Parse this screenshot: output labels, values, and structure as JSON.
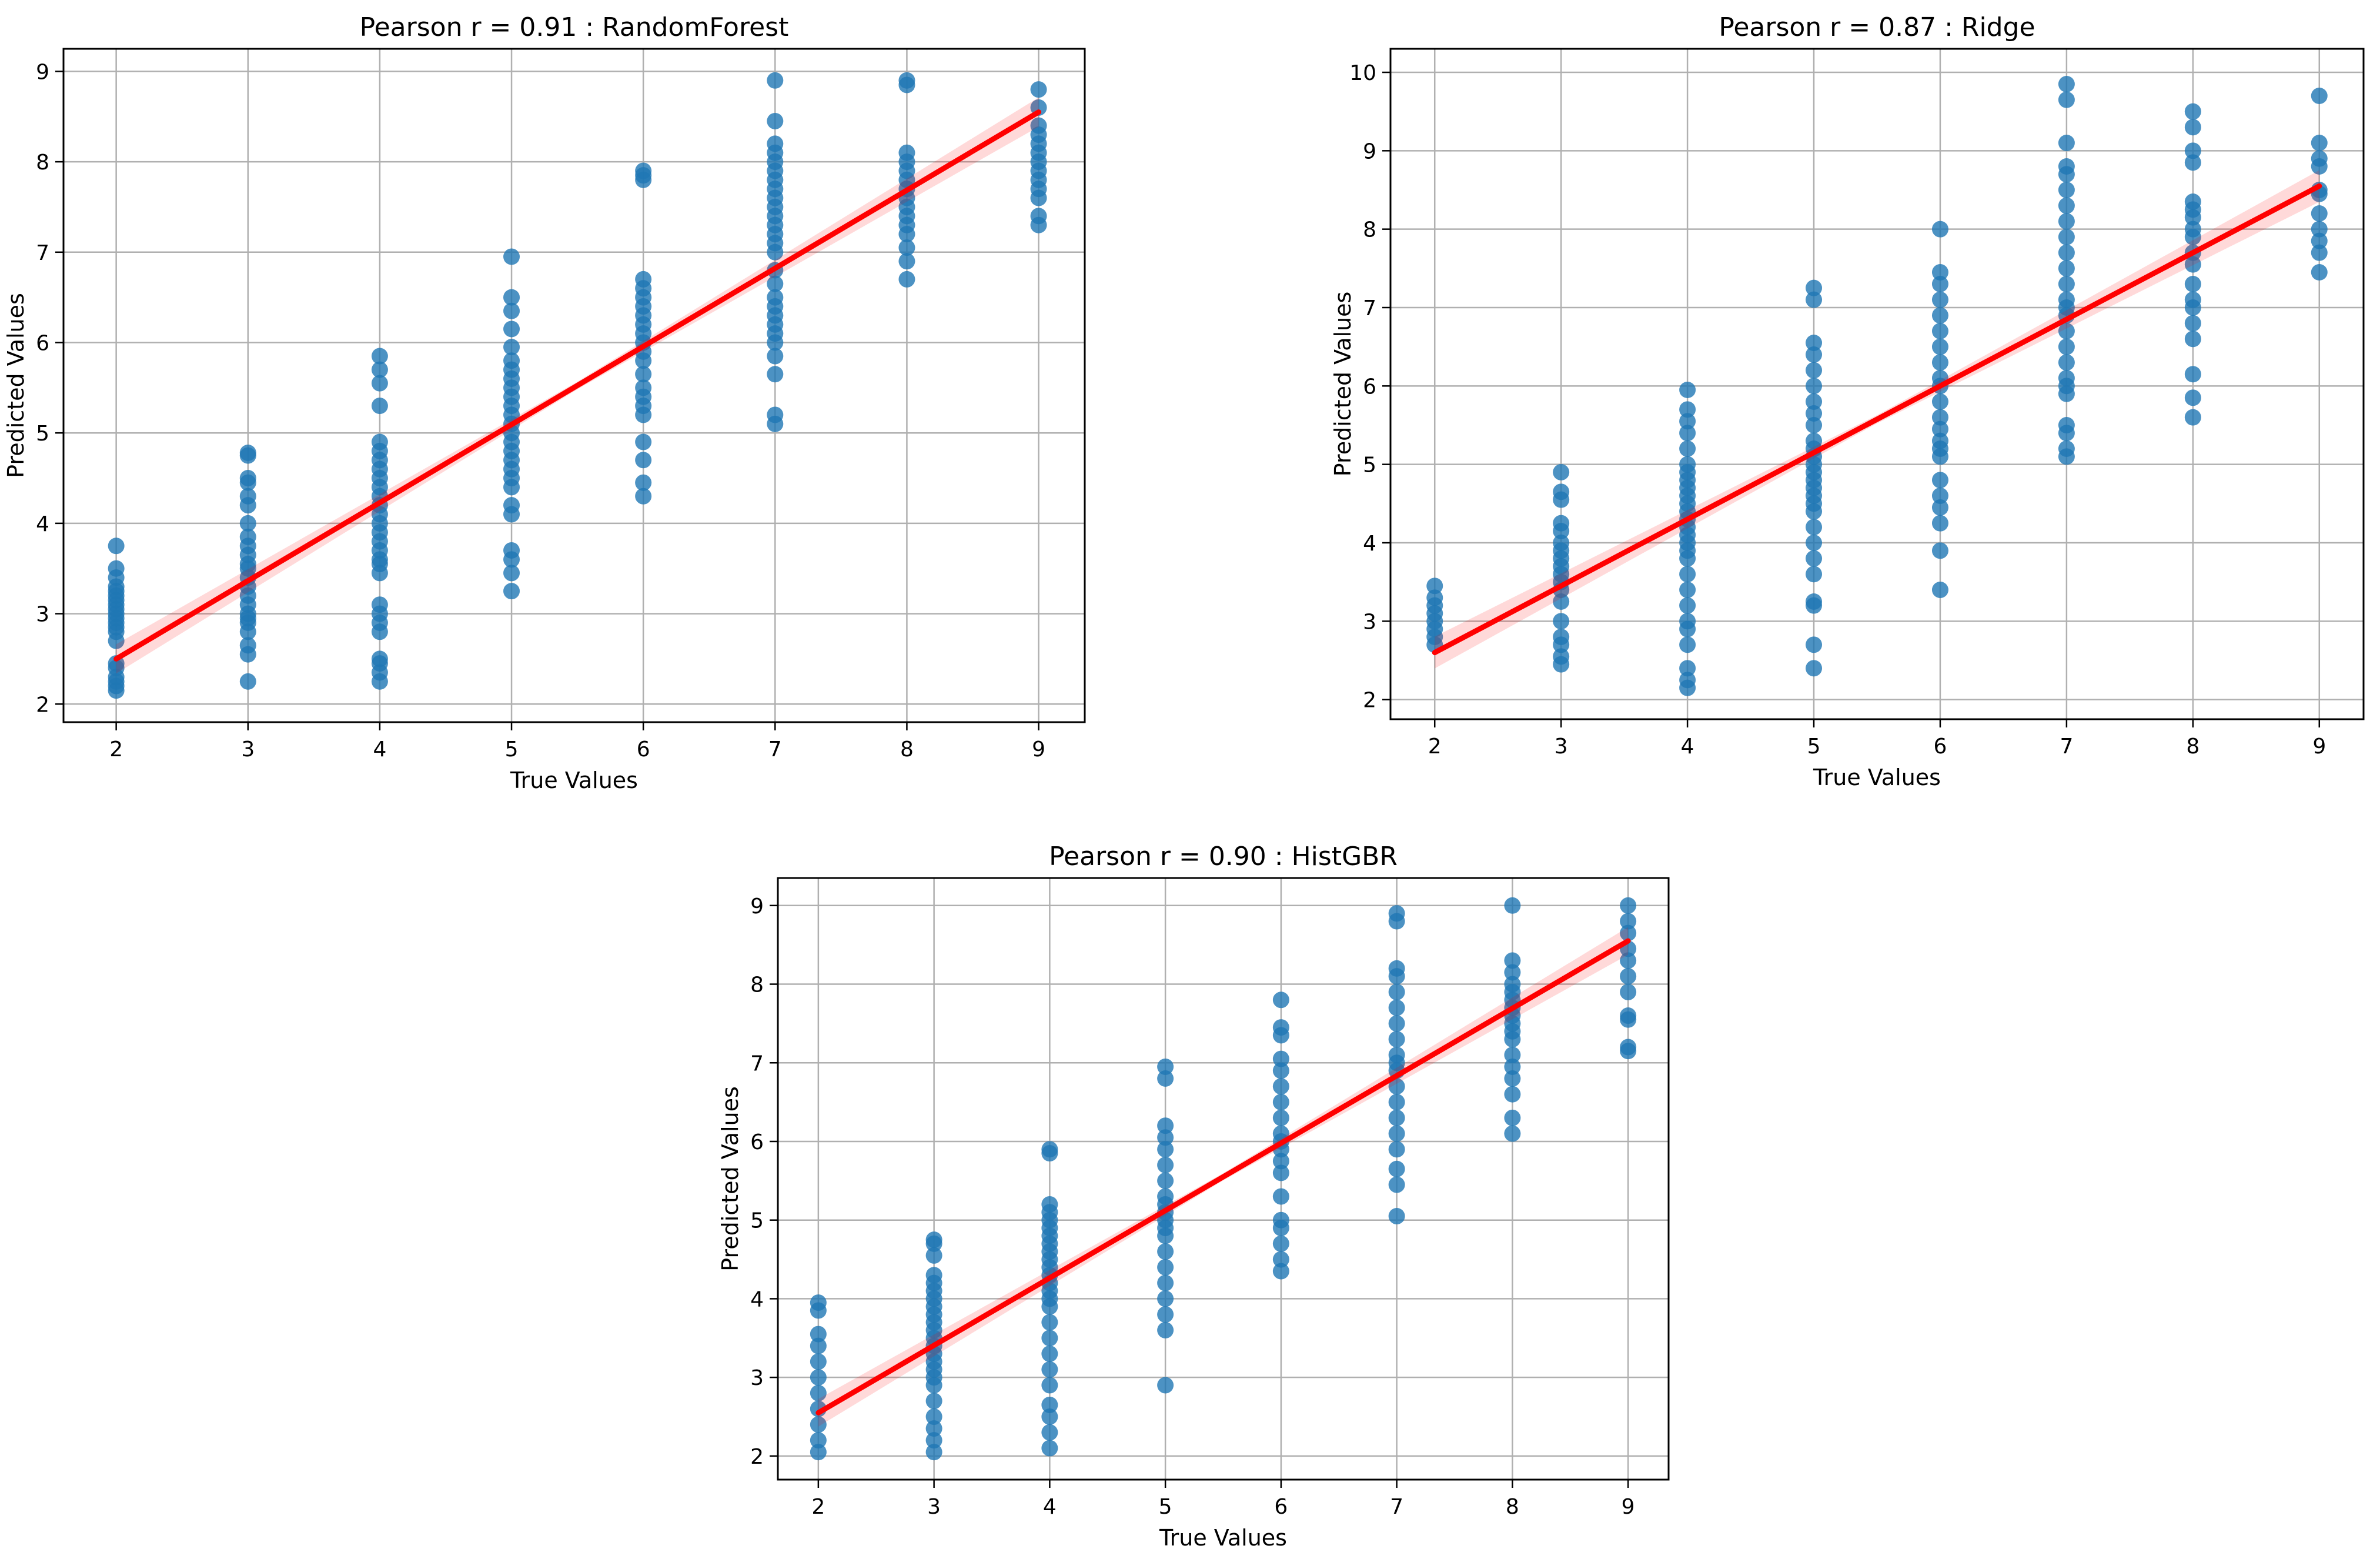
{
  "chart_data": [
    {
      "type": "scatter",
      "title": "Pearson r = 0.91 : RandomForest",
      "xlabel": "True Values",
      "ylabel": "Predicted Values",
      "xlim": [
        1.6,
        9.35
      ],
      "ylim": [
        1.8,
        9.25
      ],
      "xticks": [
        "2",
        "3",
        "4",
        "5",
        "6",
        "7",
        "8",
        "9"
      ],
      "yticks": [
        "2",
        "3",
        "4",
        "5",
        "6",
        "7",
        "8",
        "9"
      ],
      "grid": true,
      "point_color": "#1f77b4",
      "regression": {
        "x": [
          2,
          9
        ],
        "y": [
          2.5,
          8.55
        ],
        "color": "#ff0000",
        "band": 0.12
      },
      "series": [
        {
          "x": 2,
          "y": [
            2.15,
            2.2,
            2.25,
            2.3,
            2.4,
            2.45,
            2.7,
            2.8,
            2.85,
            2.9,
            2.95,
            3.0,
            3.05,
            3.1,
            3.15,
            3.2,
            3.25,
            3.3,
            3.4,
            3.5,
            3.75
          ]
        },
        {
          "x": 3,
          "y": [
            2.25,
            2.55,
            2.65,
            2.8,
            2.9,
            2.95,
            3.0,
            3.1,
            3.2,
            3.3,
            3.4,
            3.5,
            3.55,
            3.65,
            3.75,
            3.85,
            4.0,
            4.2,
            4.3,
            4.45,
            4.5,
            4.75,
            4.78
          ]
        },
        {
          "x": 4,
          "y": [
            2.25,
            2.35,
            2.45,
            2.5,
            2.8,
            2.9,
            3.0,
            3.1,
            3.45,
            3.55,
            3.6,
            3.7,
            3.8,
            3.9,
            4.0,
            4.1,
            4.2,
            4.3,
            4.4,
            4.5,
            4.6,
            4.7,
            4.8,
            4.9,
            5.3,
            5.55,
            5.7,
            5.85
          ]
        },
        {
          "x": 5,
          "y": [
            3.25,
            3.45,
            3.6,
            3.7,
            4.1,
            4.2,
            4.4,
            4.5,
            4.6,
            4.7,
            4.8,
            4.9,
            5.0,
            5.1,
            5.2,
            5.3,
            5.4,
            5.5,
            5.6,
            5.7,
            5.8,
            5.95,
            6.15,
            6.35,
            6.5,
            6.95
          ]
        },
        {
          "x": 6,
          "y": [
            4.3,
            4.45,
            4.7,
            4.9,
            5.2,
            5.3,
            5.4,
            5.5,
            5.65,
            5.8,
            5.9,
            6.0,
            6.1,
            6.2,
            6.3,
            6.4,
            6.5,
            6.6,
            6.7,
            7.8,
            7.85,
            7.9
          ]
        },
        {
          "x": 7,
          "y": [
            5.1,
            5.2,
            5.65,
            5.85,
            6.0,
            6.1,
            6.2,
            6.3,
            6.4,
            6.5,
            6.65,
            6.8,
            7.0,
            7.1,
            7.2,
            7.3,
            7.4,
            7.5,
            7.6,
            7.7,
            7.8,
            7.9,
            8.0,
            8.1,
            8.2,
            8.45,
            8.9
          ]
        },
        {
          "x": 8,
          "y": [
            6.7,
            6.9,
            7.05,
            7.2,
            7.3,
            7.4,
            7.5,
            7.6,
            7.7,
            7.8,
            7.9,
            8.0,
            8.1,
            8.85,
            8.9
          ]
        },
        {
          "x": 9,
          "y": [
            7.3,
            7.4,
            7.6,
            7.7,
            7.8,
            7.9,
            8.0,
            8.1,
            8.2,
            8.3,
            8.4,
            8.6,
            8.8
          ]
        }
      ]
    },
    {
      "type": "scatter",
      "title": "Pearson r = 0.87 : Ridge",
      "xlabel": "True Values",
      "ylabel": "Predicted Values",
      "xlim": [
        1.65,
        9.35
      ],
      "ylim": [
        1.75,
        10.3
      ],
      "xticks": [
        "2",
        "3",
        "4",
        "5",
        "6",
        "7",
        "8",
        "9"
      ],
      "yticks": [
        "2",
        "3",
        "4",
        "5",
        "6",
        "7",
        "8",
        "9",
        "10"
      ],
      "grid": true,
      "point_color": "#1f77b4",
      "regression": {
        "x": [
          2,
          9
        ],
        "y": [
          2.6,
          8.55
        ],
        "color": "#ff0000",
        "band": 0.15
      },
      "series": [
        {
          "x": 2,
          "y": [
            2.7,
            2.8,
            2.9,
            3.0,
            3.1,
            3.2,
            3.3,
            3.45
          ]
        },
        {
          "x": 3,
          "y": [
            2.45,
            2.55,
            2.7,
            2.8,
            3.0,
            3.25,
            3.4,
            3.5,
            3.6,
            3.7,
            3.8,
            3.9,
            4.0,
            4.15,
            4.25,
            4.55,
            4.65,
            4.9
          ]
        },
        {
          "x": 4,
          "y": [
            2.15,
            2.25,
            2.4,
            2.7,
            2.9,
            3.0,
            3.2,
            3.4,
            3.6,
            3.8,
            3.9,
            4.0,
            4.1,
            4.2,
            4.3,
            4.4,
            4.5,
            4.6,
            4.7,
            4.8,
            4.9,
            5.0,
            5.2,
            5.4,
            5.55,
            5.7,
            5.95
          ]
        },
        {
          "x": 5,
          "y": [
            2.4,
            2.7,
            3.2,
            3.25,
            3.6,
            3.8,
            4.0,
            4.2,
            4.4,
            4.5,
            4.6,
            4.7,
            4.8,
            4.9,
            5.0,
            5.1,
            5.2,
            5.3,
            5.5,
            5.65,
            5.8,
            6.0,
            6.2,
            6.4,
            6.55,
            7.1,
            7.25
          ]
        },
        {
          "x": 6,
          "y": [
            3.4,
            3.9,
            4.25,
            4.45,
            4.6,
            4.8,
            5.1,
            5.2,
            5.3,
            5.45,
            5.6,
            5.8,
            6.0,
            6.1,
            6.3,
            6.5,
            6.7,
            6.9,
            7.1,
            7.3,
            7.45,
            8.0
          ]
        },
        {
          "x": 7,
          "y": [
            5.1,
            5.2,
            5.4,
            5.5,
            5.9,
            6.0,
            6.1,
            6.3,
            6.5,
            6.7,
            6.9,
            7.0,
            7.1,
            7.3,
            7.5,
            7.7,
            7.9,
            8.1,
            8.3,
            8.5,
            8.7,
            8.8,
            9.1,
            9.65,
            9.85
          ]
        },
        {
          "x": 8,
          "y": [
            5.6,
            5.85,
            6.15,
            6.6,
            6.8,
            7.0,
            7.1,
            7.3,
            7.55,
            7.7,
            7.9,
            8.0,
            8.15,
            8.25,
            8.35,
            8.85,
            9.0,
            9.3,
            9.5
          ]
        },
        {
          "x": 9,
          "y": [
            7.45,
            7.7,
            7.85,
            8.0,
            8.2,
            8.45,
            8.5,
            8.8,
            8.9,
            9.1,
            9.7
          ]
        }
      ]
    },
    {
      "type": "scatter",
      "title": "Pearson r = 0.90 : HistGBR",
      "xlabel": "True Values",
      "ylabel": "Predicted Values",
      "xlim": [
        1.65,
        9.35
      ],
      "ylim": [
        1.7,
        9.35
      ],
      "xticks": [
        "2",
        "3",
        "4",
        "5",
        "6",
        "7",
        "8",
        "9"
      ],
      "yticks": [
        "2",
        "3",
        "4",
        "5",
        "6",
        "7",
        "8",
        "9"
      ],
      "grid": true,
      "point_color": "#1f77b4",
      "regression": {
        "x": [
          2,
          9
        ],
        "y": [
          2.55,
          8.55
        ],
        "color": "#ff0000",
        "band": 0.13
      },
      "series": [
        {
          "x": 2,
          "y": [
            2.05,
            2.2,
            2.4,
            2.6,
            2.8,
            3.0,
            3.2,
            3.4,
            3.55,
            3.85,
            3.95
          ]
        },
        {
          "x": 3,
          "y": [
            2.05,
            2.2,
            2.35,
            2.5,
            2.7,
            2.9,
            3.0,
            3.1,
            3.2,
            3.3,
            3.4,
            3.5,
            3.6,
            3.7,
            3.8,
            3.9,
            4.0,
            4.1,
            4.2,
            4.3,
            4.55,
            4.7,
            4.75
          ]
        },
        {
          "x": 4,
          "y": [
            2.1,
            2.3,
            2.5,
            2.65,
            2.9,
            3.1,
            3.3,
            3.5,
            3.7,
            3.9,
            4.0,
            4.1,
            4.2,
            4.3,
            4.4,
            4.5,
            4.6,
            4.7,
            4.8,
            4.9,
            5.0,
            5.1,
            5.2,
            5.85,
            5.9
          ]
        },
        {
          "x": 5,
          "y": [
            2.9,
            3.6,
            3.8,
            4.0,
            4.2,
            4.4,
            4.6,
            4.8,
            4.9,
            5.0,
            5.1,
            5.2,
            5.3,
            5.5,
            5.7,
            5.9,
            6.05,
            6.2,
            6.8,
            6.95
          ]
        },
        {
          "x": 6,
          "y": [
            4.35,
            4.5,
            4.7,
            4.9,
            5.0,
            5.3,
            5.6,
            5.75,
            5.9,
            6.0,
            6.1,
            6.3,
            6.5,
            6.7,
            6.9,
            7.05,
            7.35,
            7.45,
            7.8
          ]
        },
        {
          "x": 7,
          "y": [
            5.05,
            5.45,
            5.65,
            5.9,
            6.1,
            6.3,
            6.5,
            6.7,
            6.9,
            7.0,
            7.1,
            7.3,
            7.5,
            7.7,
            7.9,
            8.1,
            8.2,
            8.8,
            8.9
          ]
        },
        {
          "x": 8,
          "y": [
            6.1,
            6.3,
            6.6,
            6.8,
            6.95,
            7.1,
            7.3,
            7.4,
            7.5,
            7.6,
            7.7,
            7.8,
            7.9,
            8.0,
            8.15,
            8.3,
            9.0
          ]
        },
        {
          "x": 9,
          "y": [
            7.15,
            7.2,
            7.55,
            7.6,
            7.9,
            8.1,
            8.3,
            8.45,
            8.65,
            8.8,
            9.0
          ]
        }
      ]
    }
  ]
}
